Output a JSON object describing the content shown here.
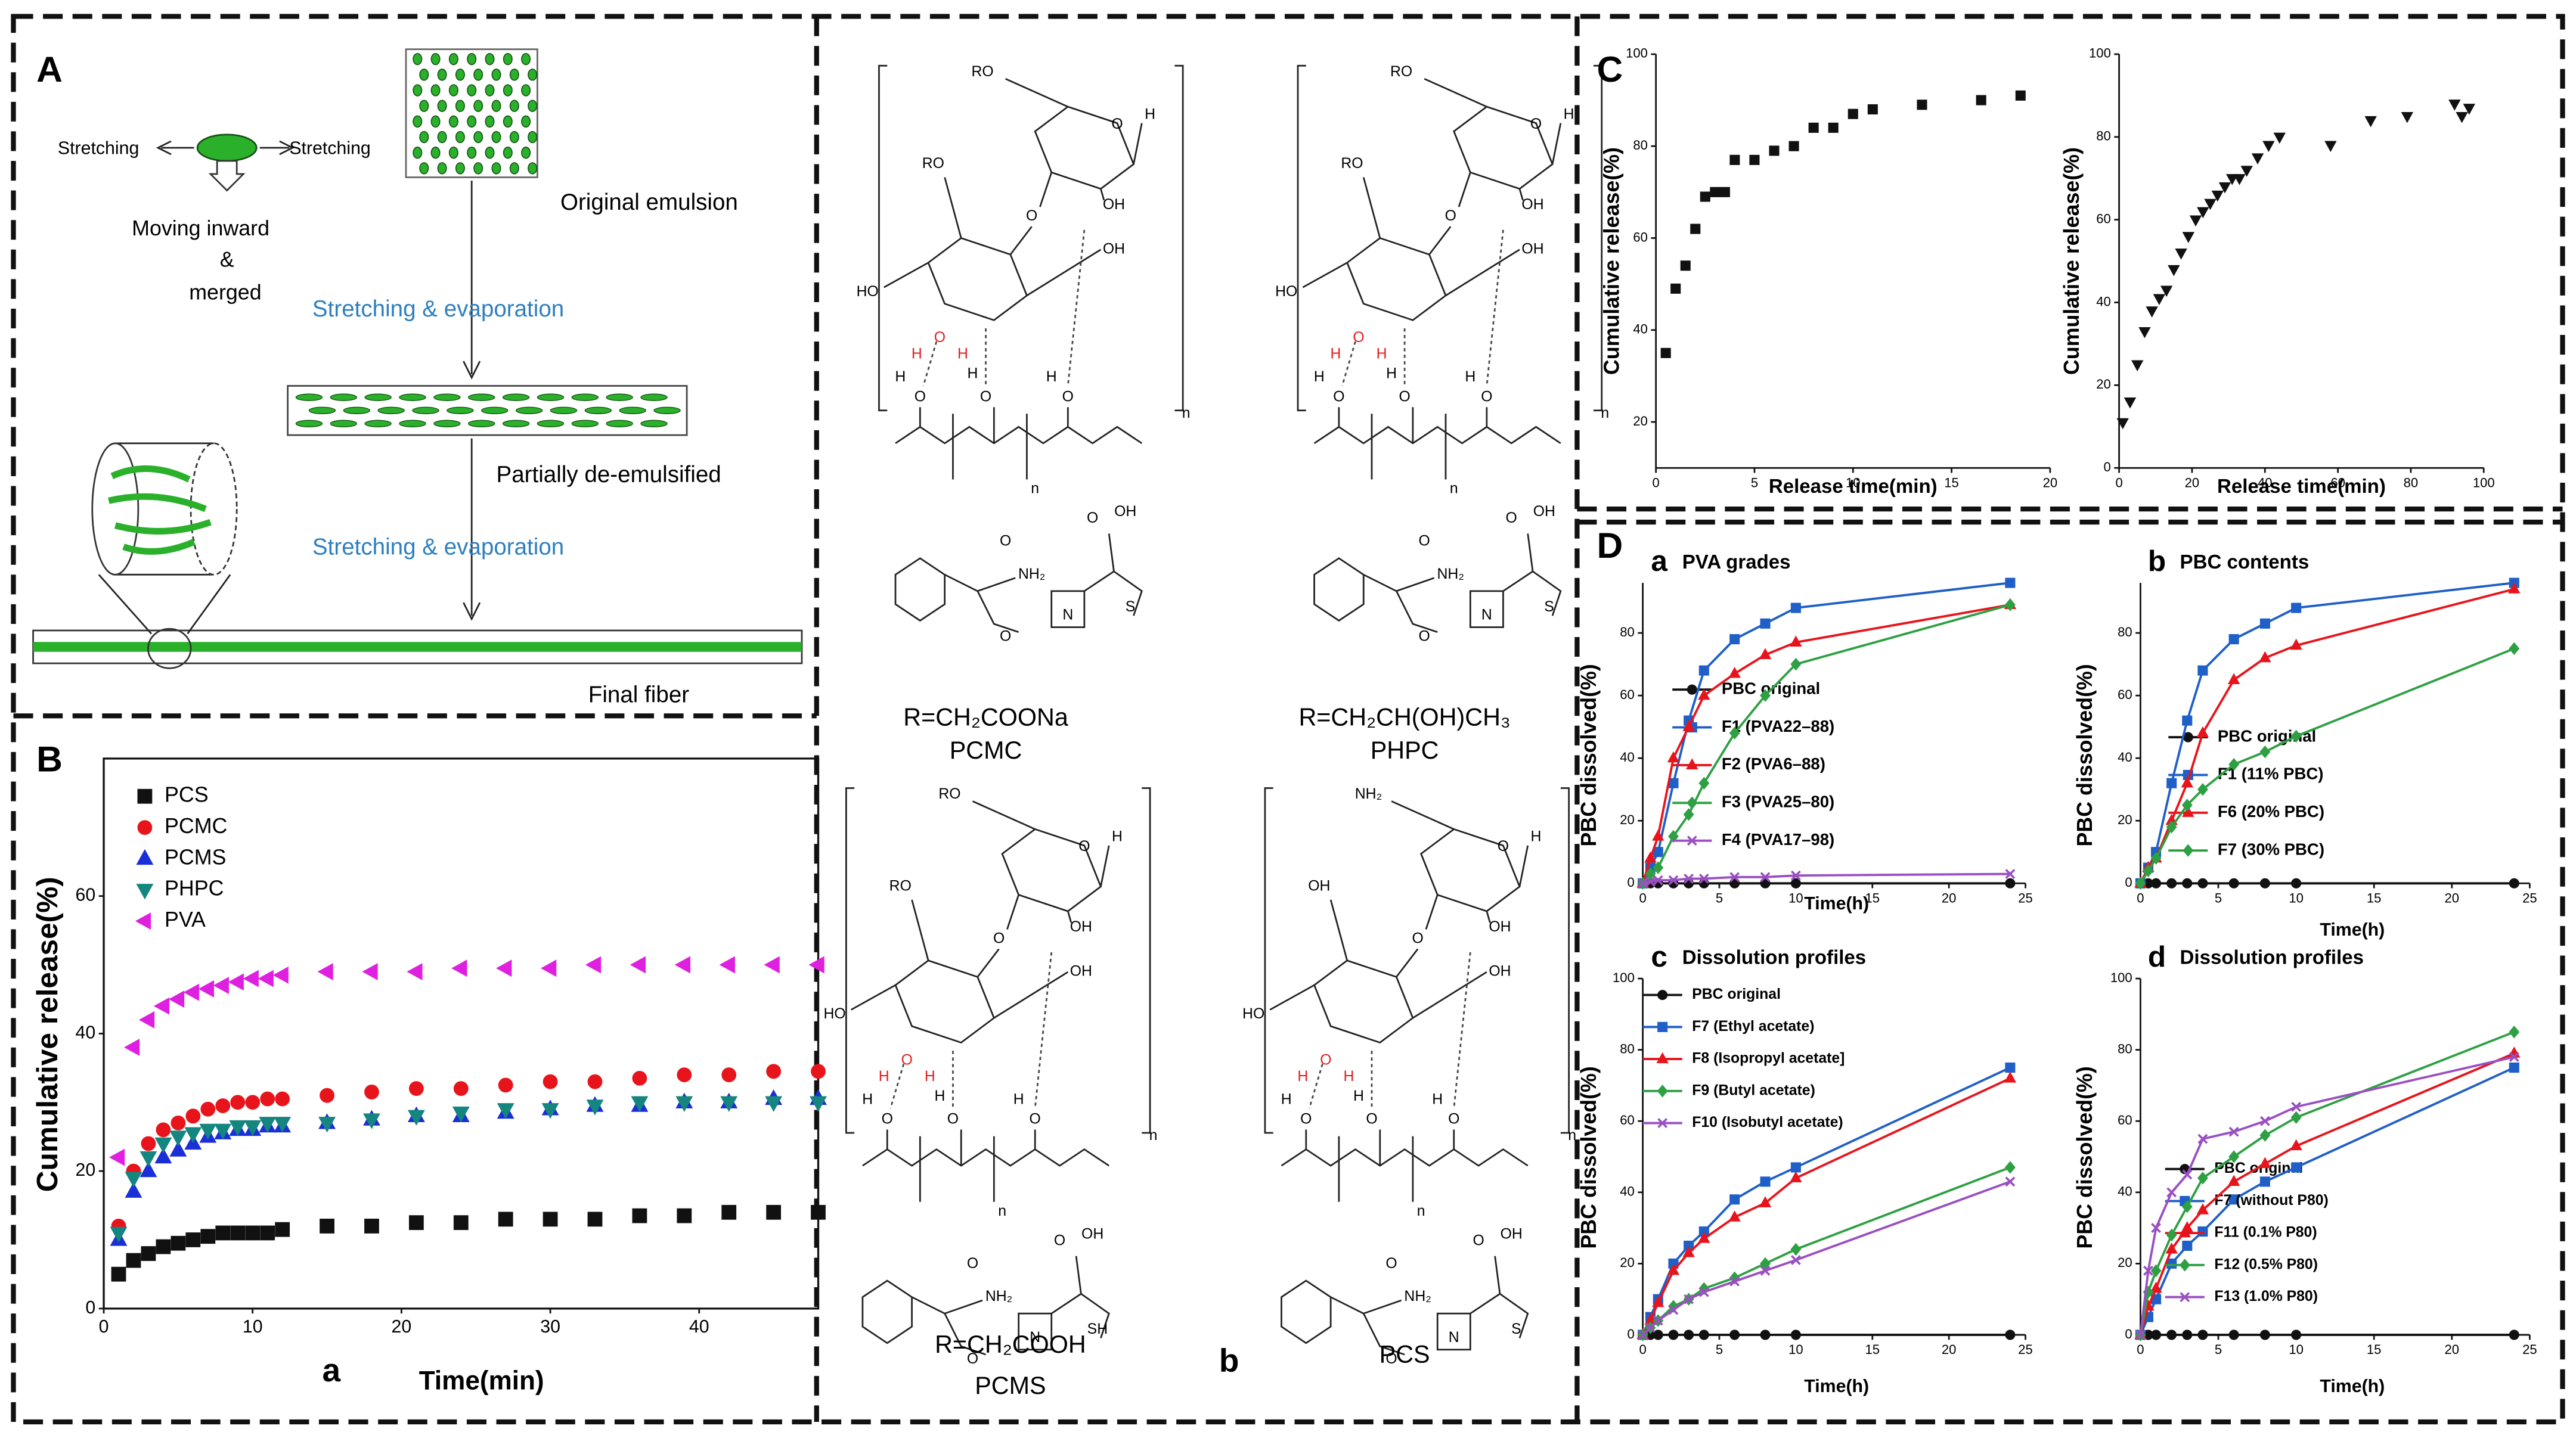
{
  "panel_labels": {
    "A": "A",
    "B": "B",
    "C": "C",
    "D": "D",
    "a": "a",
    "b": "b"
  },
  "diagram_a": {
    "stretch_left": "Stretching",
    "stretch_right": "Stretching",
    "moving": "Moving inward",
    "amp": "&",
    "merged": "merged",
    "original": "Original emulsion",
    "step1": "Stretching & evaporation",
    "partial": "Partially de-emulsified",
    "step2": "Stretching & evaporation",
    "final": "Final fiber"
  },
  "structures": [
    {
      "r_group": "R=CH₂COONa",
      "name": "PCMC",
      "atoms": [
        "RO",
        "RO",
        "O",
        "OH",
        "OH",
        "HO",
        "O",
        "H",
        "O",
        "H",
        "O",
        "H",
        "n",
        "n",
        "NH₂",
        "O",
        "N",
        "S",
        "O",
        "OH",
        "O",
        "O",
        "H"
      ],
      "water": [
        "H",
        "O",
        "H"
      ]
    },
    {
      "r_group": "R=CH₂CH(OH)CH₃",
      "name": "PHPC",
      "atoms": [
        "RO",
        "RO",
        "O",
        "OH",
        "OH",
        "HO",
        "O",
        "H",
        "O",
        "H",
        "O",
        "H",
        "n",
        "n",
        "NH₂",
        "O",
        "N",
        "S",
        "O",
        "OH",
        "O",
        "O",
        "H"
      ],
      "water": [
        "H",
        "O",
        "H"
      ]
    },
    {
      "r_group": "R=CH₂COOH",
      "name": "PCMS",
      "atoms": [
        "RO",
        "RO",
        "O",
        "OH",
        "OH",
        "HO",
        "O",
        "H",
        "O",
        "H",
        "O",
        "H",
        "n",
        "n",
        "NH₂",
        "O",
        "N",
        "SH",
        "O",
        "OH",
        "O",
        "O",
        "H"
      ],
      "water": [
        "H",
        "O",
        "H"
      ]
    },
    {
      "name": "PCS",
      "atoms": [
        "NH₂",
        "OH",
        "O",
        "OH",
        "OH",
        "HO",
        "O",
        "H",
        "O",
        "H",
        "O",
        "H",
        "n",
        "n",
        "NH₂",
        "O",
        "N",
        "S",
        "O",
        "OH",
        "O",
        "O",
        "H"
      ],
      "water": [
        "H",
        "O",
        "H"
      ]
    }
  ],
  "chart_data": [
    {
      "type": "scatter",
      "xlabel": "Time(min)",
      "ylabel": "Cumulative release(%)",
      "xlim": [
        0,
        48
      ],
      "ylim": [
        0,
        80
      ],
      "xticks": [
        0,
        10,
        20,
        30,
        40
      ],
      "yticks": [
        0,
        20,
        40,
        60
      ],
      "legend": "upper left",
      "x": [
        1,
        2,
        3,
        4,
        5,
        6,
        7,
        8,
        9,
        10,
        11,
        12,
        15,
        18,
        21,
        24,
        27,
        30,
        33,
        36,
        39,
        42,
        45,
        48
      ],
      "series": [
        {
          "name": "PCS",
          "color": "#111111",
          "marker": "square",
          "values": [
            5,
            7,
            8,
            9,
            9.5,
            10,
            10.5,
            11,
            11,
            11,
            11,
            11.5,
            12,
            12,
            12.5,
            12.5,
            13,
            13,
            13,
            13.5,
            13.5,
            14,
            14,
            14
          ]
        },
        {
          "name": "PCMC",
          "color": "#e8141c",
          "marker": "circle",
          "values": [
            12,
            20,
            24,
            26,
            27,
            28,
            29,
            29.5,
            30,
            30,
            30.5,
            30.5,
            31,
            31.5,
            32,
            32,
            32.5,
            33,
            33,
            33.5,
            34,
            34,
            34.5,
            34.5
          ]
        },
        {
          "name": "PCMS",
          "color": "#1a2fd8",
          "marker": "triangle",
          "values": [
            10,
            17,
            20,
            22,
            23,
            24,
            25,
            25.5,
            26,
            26,
            26.5,
            26.5,
            27,
            27.5,
            28,
            28,
            28.5,
            29,
            29.5,
            29.5,
            30,
            30,
            30.5,
            30.5
          ]
        },
        {
          "name": "PHPC",
          "color": "#15857f",
          "marker": "triangle-down",
          "values": [
            11,
            19,
            22,
            24,
            25,
            25.5,
            26,
            26,
            26.5,
            26.5,
            27,
            27,
            27,
            27.5,
            28,
            28.5,
            29,
            29,
            29.5,
            30,
            30,
            30,
            30,
            30
          ]
        },
        {
          "name": "PVA",
          "color": "#e020e0",
          "marker": "triangle-left",
          "values": [
            22,
            38,
            42,
            44,
            45,
            46,
            46.5,
            47,
            47.5,
            48,
            48,
            48.5,
            49,
            49,
            49,
            49.5,
            49.5,
            49.5,
            50,
            50,
            50,
            50,
            50,
            50
          ]
        }
      ]
    },
    {
      "type": "scatter",
      "xlabel": "Release time(min)",
      "ylabel": "Cumulative release(%)",
      "xlim": [
        0,
        20
      ],
      "ylim": [
        10,
        100
      ],
      "xticks": [
        0,
        5,
        10,
        15,
        20
      ],
      "yticks": [
        20,
        40,
        60,
        80,
        100
      ],
      "x": [
        0.5,
        1,
        1.5,
        2,
        2.5,
        3,
        3.5,
        4,
        5,
        6,
        7,
        8,
        9,
        10,
        11,
        13.5,
        16.5,
        18.5
      ],
      "series": [
        {
          "color": "#111111",
          "marker": "square",
          "values": [
            35,
            49,
            54,
            62,
            69,
            70,
            70,
            77,
            77,
            79,
            80,
            84,
            84,
            87,
            88,
            89,
            90,
            91
          ]
        }
      ]
    },
    {
      "type": "scatter",
      "xlabel": "Release time(min)",
      "ylabel": "Cumulative release(%)",
      "xlim": [
        0,
        100
      ],
      "ylim": [
        0,
        100
      ],
      "xticks": [
        0,
        20,
        40,
        60,
        80,
        100
      ],
      "yticks": [
        0,
        20,
        40,
        60,
        80,
        100
      ],
      "x": [
        1,
        3,
        5,
        7,
        9,
        11,
        13,
        15,
        17,
        19,
        21,
        23,
        25,
        27,
        29,
        31,
        33,
        35,
        38,
        41,
        44,
        58,
        69,
        79,
        92,
        94,
        96
      ],
      "series": [
        {
          "color": "#111111",
          "marker": "triangle-down",
          "values": [
            11,
            16,
            25,
            33,
            38,
            41,
            43,
            48,
            52,
            56,
            60,
            62,
            64,
            66,
            68,
            70,
            70,
            72,
            75,
            78,
            80,
            78,
            84,
            85,
            88,
            85,
            87
          ]
        }
      ]
    },
    {
      "type": "line",
      "panel": "a",
      "title": "PVA grades",
      "xlabel": "Time(h)",
      "ylabel": "PBC dissolved(%)",
      "xlim": [
        0,
        25
      ],
      "ylim": [
        0,
        96
      ],
      "xticks": [
        0,
        5,
        10,
        15,
        20,
        25
      ],
      "yticks": [
        0,
        20,
        40,
        60,
        80
      ],
      "legend": "center right",
      "x": [
        0,
        0.5,
        1,
        2,
        3,
        4,
        6,
        8,
        10,
        24
      ],
      "series": [
        {
          "name": "PBC original",
          "color": "#111111",
          "marker": "circle",
          "values": [
            0,
            0,
            0,
            0,
            0,
            0,
            0,
            0,
            0,
            0
          ]
        },
        {
          "name": "F1 (PVA22–88)",
          "color": "#1f5fc8",
          "marker": "square",
          "values": [
            0,
            5,
            10,
            32,
            52,
            68,
            78,
            83,
            88,
            96
          ]
        },
        {
          "name": "F2 (PVA6–88)",
          "color": "#e8141c",
          "marker": "triangle",
          "values": [
            0,
            8,
            15,
            40,
            50,
            60,
            67,
            73,
            77,
            89
          ]
        },
        {
          "name": "F3 (PVA25–80)",
          "color": "#2ea043",
          "marker": "diamond",
          "values": [
            0,
            3,
            5,
            15,
            22,
            32,
            48,
            60,
            70,
            89
          ]
        },
        {
          "name": "F4 (PVA17–98)",
          "color": "#9a4fc2",
          "marker": "x",
          "values": [
            0,
            0.5,
            1,
            1,
            1.5,
            1.5,
            2,
            2,
            2.5,
            3
          ]
        }
      ]
    },
    {
      "type": "line",
      "panel": "b",
      "title": "PBC contents",
      "xlabel": "Time(h)",
      "ylabel": "PBC dissolved(%)",
      "xlim": [
        0,
        25
      ],
      "ylim": [
        0,
        96
      ],
      "xticks": [
        0,
        5,
        10,
        15,
        20,
        25
      ],
      "yticks": [
        0,
        20,
        40,
        60,
        80
      ],
      "legend": "center right",
      "x": [
        0,
        0.5,
        1,
        2,
        3,
        4,
        6,
        8,
        10,
        24
      ],
      "series": [
        {
          "name": "PBC original",
          "color": "#111111",
          "marker": "circle",
          "values": [
            0,
            0,
            0,
            0,
            0,
            0,
            0,
            0,
            0,
            0
          ]
        },
        {
          "name": "F1 (11% PBC)",
          "color": "#1f5fc8",
          "marker": "square",
          "values": [
            0,
            5,
            10,
            32,
            52,
            68,
            78,
            83,
            88,
            96
          ]
        },
        {
          "name": "F6 (20% PBC)",
          "color": "#e8141c",
          "marker": "triangle",
          "values": [
            0,
            5,
            8,
            20,
            32,
            48,
            65,
            72,
            76,
            94
          ]
        },
        {
          "name": "F7 (30% PBC)",
          "color": "#2ea043",
          "marker": "diamond",
          "values": [
            0,
            4,
            8,
            18,
            25,
            30,
            38,
            42,
            47,
            75
          ]
        }
      ]
    },
    {
      "type": "line",
      "panel": "c",
      "title": "Dissolution profiles",
      "xlabel": "Time(h)",
      "ylabel": "PBC dissolved(%)",
      "xlim": [
        0,
        25
      ],
      "ylim": [
        0,
        100
      ],
      "xticks": [
        0,
        5,
        10,
        15,
        20,
        25
      ],
      "yticks": [
        0,
        20,
        40,
        60,
        80,
        100
      ],
      "legend": "upper left",
      "x": [
        0,
        0.5,
        1,
        2,
        3,
        4,
        6,
        8,
        10,
        24
      ],
      "series": [
        {
          "name": "PBC original",
          "color": "#111111",
          "marker": "circle",
          "values": [
            0,
            0,
            0,
            0,
            0,
            0,
            0,
            0,
            0,
            0
          ]
        },
        {
          "name": "F7 (Ethyl acetate)",
          "color": "#1f5fc8",
          "marker": "square",
          "values": [
            0,
            5,
            10,
            20,
            25,
            29,
            38,
            43,
            47,
            75
          ]
        },
        {
          "name": "F8 (Isopropyl acetate]",
          "color": "#e8141c",
          "marker": "triangle",
          "values": [
            0,
            4,
            9,
            18,
            23,
            27,
            33,
            37,
            44,
            72
          ]
        },
        {
          "name": "F9 (Butyl acetate)",
          "color": "#2ea043",
          "marker": "diamond",
          "values": [
            0,
            2,
            4,
            8,
            10,
            13,
            16,
            20,
            24,
            47
          ]
        },
        {
          "name": "F10 (Isobutyl acetate)",
          "color": "#9a4fc2",
          "marker": "x",
          "values": [
            0,
            2,
            4,
            7,
            10,
            12,
            15,
            18,
            21,
            43
          ]
        }
      ]
    },
    {
      "type": "line",
      "panel": "d",
      "title": "Dissolution profiles",
      "xlabel": "Time(h)",
      "ylabel": "PBC dissolved(%)",
      "xlim": [
        0,
        25
      ],
      "ylim": [
        0,
        100
      ],
      "xticks": [
        0,
        5,
        10,
        15,
        20,
        25
      ],
      "yticks": [
        0,
        20,
        40,
        60,
        80,
        100
      ],
      "legend": "center right",
      "x": [
        0,
        0.5,
        1,
        2,
        3,
        4,
        6,
        8,
        10,
        24
      ],
      "series": [
        {
          "name": "PBC original",
          "color": "#111111",
          "marker": "circle",
          "values": [
            0,
            0,
            0,
            0,
            0,
            0,
            0,
            0,
            0,
            0
          ]
        },
        {
          "name": "F7 (without P80)",
          "color": "#1f5fc8",
          "marker": "square",
          "values": [
            0,
            5,
            10,
            20,
            25,
            29,
            38,
            43,
            47,
            75
          ]
        },
        {
          "name": "F11 (0.1% P80)",
          "color": "#e8141c",
          "marker": "triangle",
          "values": [
            0,
            8,
            13,
            24,
            30,
            35,
            43,
            48,
            53,
            79
          ]
        },
        {
          "name": "F12 (0.5% P80)",
          "color": "#2ea043",
          "marker": "diamond",
          "values": [
            0,
            12,
            18,
            28,
            36,
            44,
            50,
            56,
            61,
            85
          ]
        },
        {
          "name": "F13 (1.0% P80)",
          "color": "#9a4fc2",
          "marker": "x",
          "values": [
            0,
            18,
            30,
            40,
            45,
            55,
            57,
            60,
            64,
            78
          ]
        }
      ]
    }
  ]
}
